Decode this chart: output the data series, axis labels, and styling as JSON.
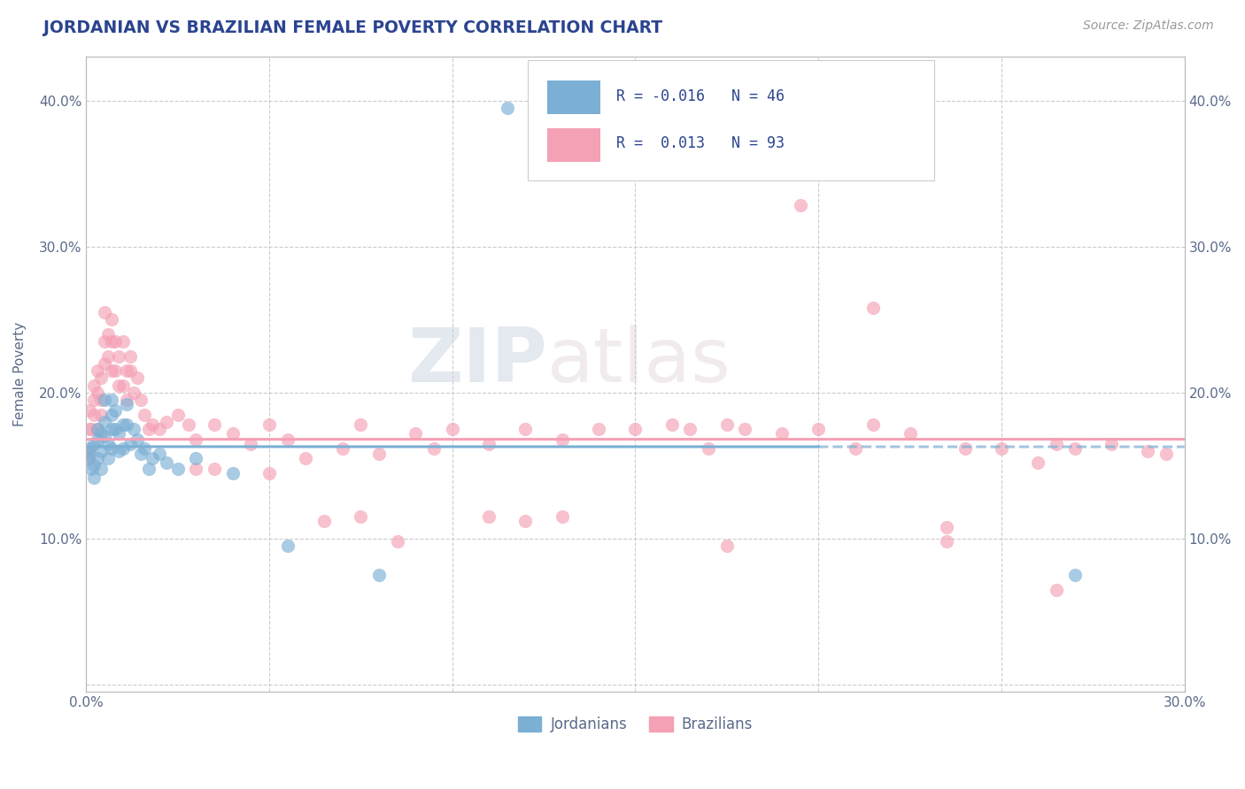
{
  "title": "JORDANIAN VS BRAZILIAN FEMALE POVERTY CORRELATION CHART",
  "source_text": "Source: ZipAtlas.com",
  "ylabel": "Female Poverty",
  "xlim": [
    0.0,
    0.3
  ],
  "ylim": [
    -0.005,
    0.43
  ],
  "title_color": "#2b4490",
  "axis_color": "#bbbbbb",
  "tick_color": "#5a6a8a",
  "grid_color": "#cccccc",
  "color_jordan": "#7bafd4",
  "color_brazil": "#f4a0b5",
  "watermark_zip": "ZIP",
  "watermark_atlas": "atlas",
  "jordan_scatter_x": [
    0.0005,
    0.001,
    0.001,
    0.0015,
    0.002,
    0.002,
    0.002,
    0.003,
    0.003,
    0.003,
    0.004,
    0.004,
    0.004,
    0.005,
    0.005,
    0.005,
    0.006,
    0.006,
    0.007,
    0.007,
    0.007,
    0.007,
    0.008,
    0.008,
    0.009,
    0.009,
    0.01,
    0.01,
    0.011,
    0.011,
    0.012,
    0.013,
    0.014,
    0.015,
    0.016,
    0.017,
    0.018,
    0.02,
    0.022,
    0.025,
    0.03,
    0.04,
    0.055,
    0.08,
    0.115,
    0.27
  ],
  "jordan_scatter_y": [
    0.155,
    0.162,
    0.158,
    0.148,
    0.165,
    0.15,
    0.142,
    0.175,
    0.168,
    0.155,
    0.172,
    0.16,
    0.148,
    0.195,
    0.18,
    0.17,
    0.165,
    0.155,
    0.195,
    0.185,
    0.175,
    0.162,
    0.188,
    0.175,
    0.172,
    0.16,
    0.178,
    0.162,
    0.192,
    0.178,
    0.165,
    0.175,
    0.168,
    0.158,
    0.162,
    0.148,
    0.155,
    0.158,
    0.152,
    0.148,
    0.155,
    0.145,
    0.095,
    0.075,
    0.395,
    0.075
  ],
  "brazil_scatter_x": [
    0.0005,
    0.001,
    0.001,
    0.001,
    0.0015,
    0.002,
    0.002,
    0.002,
    0.003,
    0.003,
    0.003,
    0.004,
    0.004,
    0.004,
    0.005,
    0.005,
    0.005,
    0.006,
    0.006,
    0.007,
    0.007,
    0.007,
    0.008,
    0.008,
    0.009,
    0.009,
    0.01,
    0.01,
    0.011,
    0.011,
    0.012,
    0.012,
    0.013,
    0.014,
    0.015,
    0.016,
    0.017,
    0.018,
    0.02,
    0.022,
    0.025,
    0.028,
    0.03,
    0.035,
    0.04,
    0.045,
    0.05,
    0.055,
    0.06,
    0.07,
    0.075,
    0.08,
    0.09,
    0.095,
    0.1,
    0.11,
    0.12,
    0.13,
    0.14,
    0.15,
    0.16,
    0.165,
    0.17,
    0.175,
    0.18,
    0.19,
    0.2,
    0.21,
    0.215,
    0.225,
    0.235,
    0.24,
    0.25,
    0.26,
    0.265,
    0.27,
    0.28,
    0.29,
    0.295,
    0.03,
    0.035,
    0.05,
    0.065,
    0.075,
    0.085,
    0.11,
    0.12,
    0.13,
    0.175,
    0.195,
    0.215,
    0.235,
    0.265
  ],
  "brazil_scatter_y": [
    0.16,
    0.155,
    0.175,
    0.188,
    0.175,
    0.205,
    0.195,
    0.185,
    0.215,
    0.2,
    0.175,
    0.21,
    0.195,
    0.185,
    0.255,
    0.235,
    0.22,
    0.24,
    0.225,
    0.25,
    0.235,
    0.215,
    0.235,
    0.215,
    0.225,
    0.205,
    0.235,
    0.205,
    0.215,
    0.195,
    0.225,
    0.215,
    0.2,
    0.21,
    0.195,
    0.185,
    0.175,
    0.178,
    0.175,
    0.18,
    0.185,
    0.178,
    0.168,
    0.178,
    0.172,
    0.165,
    0.178,
    0.168,
    0.155,
    0.162,
    0.178,
    0.158,
    0.172,
    0.162,
    0.175,
    0.165,
    0.175,
    0.168,
    0.175,
    0.175,
    0.178,
    0.175,
    0.162,
    0.178,
    0.175,
    0.172,
    0.175,
    0.162,
    0.178,
    0.172,
    0.108,
    0.162,
    0.162,
    0.152,
    0.165,
    0.162,
    0.165,
    0.16,
    0.158,
    0.148,
    0.148,
    0.145,
    0.112,
    0.115,
    0.098,
    0.115,
    0.112,
    0.115,
    0.095,
    0.328,
    0.258,
    0.098,
    0.065
  ]
}
